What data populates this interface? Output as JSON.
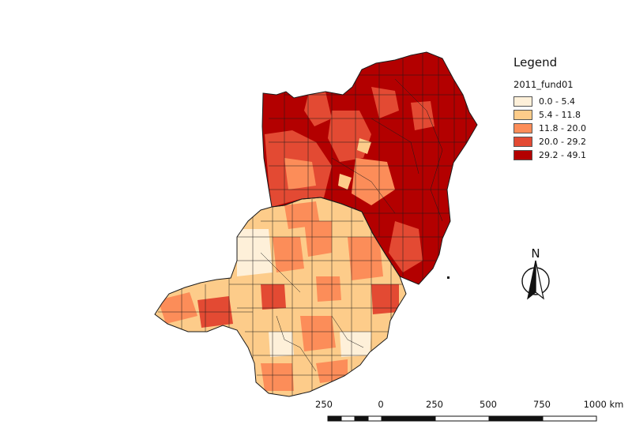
{
  "legend": {
    "title": "Legend",
    "field": "2011_fund01",
    "classes": [
      {
        "label": "0.0 - 5.4",
        "color": "#fef0d9"
      },
      {
        "label": "5.4 - 11.8",
        "color": "#fdcc8a"
      },
      {
        "label": "11.8 - 20.0",
        "color": "#fc8d59"
      },
      {
        "label": "20.0 - 29.2",
        "color": "#e34a33"
      },
      {
        "label": "29.2 - 49.1",
        "color": "#b30000"
      }
    ]
  },
  "north_arrow": {
    "letter": "N"
  },
  "scale_bar": {
    "labels": [
      "250",
      "0",
      "250",
      "500",
      "750",
      "1000 km"
    ]
  },
  "colors": {
    "border": "#1a1a1a",
    "background": "#ffffff"
  }
}
